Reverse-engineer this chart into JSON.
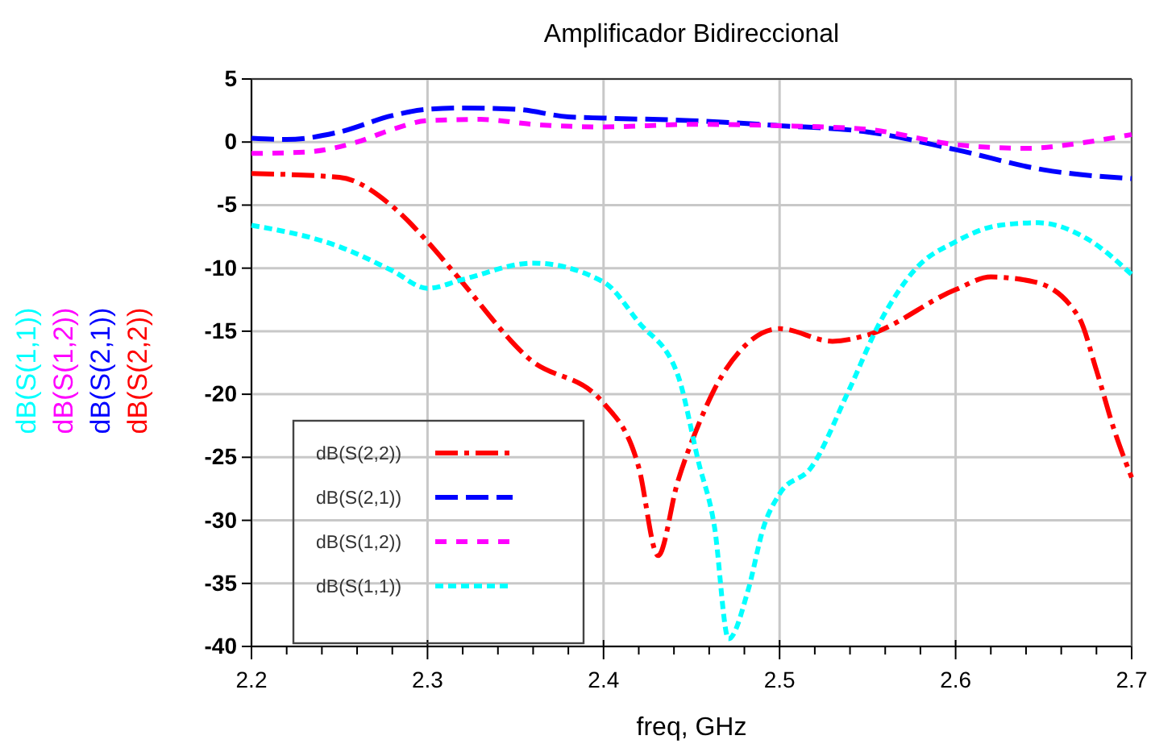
{
  "chart_data": {
    "type": "line",
    "title": "Amplificador Bidireccional",
    "xlabel": "freq, GHz",
    "xlim": [
      2.2,
      2.7
    ],
    "ylim": [
      -40,
      5
    ],
    "xticks": [
      2.2,
      {
        "value": 2.22,
        "label": null
      },
      {
        "value": 2.24,
        "label": null
      },
      {
        "value": 2.26,
        "label": null
      },
      {
        "value": 2.28,
        "label": null
      },
      2.3,
      {
        "value": 2.32,
        "label": null
      },
      {
        "value": 2.34,
        "label": null
      },
      {
        "value": 2.36,
        "label": null
      },
      {
        "value": 2.38,
        "label": null
      },
      2.4,
      {
        "value": 2.42,
        "label": null
      },
      {
        "value": 2.44,
        "label": null
      },
      {
        "value": 2.46,
        "label": null
      },
      {
        "value": 2.48,
        "label": null
      },
      2.5,
      {
        "value": 2.52,
        "label": null
      },
      {
        "value": 2.54,
        "label": null
      },
      {
        "value": 2.56,
        "label": null
      },
      {
        "value": 2.58,
        "label": null
      },
      2.6,
      {
        "value": 2.62,
        "label": null
      },
      {
        "value": 2.64,
        "label": null
      },
      {
        "value": 2.66,
        "label": null
      },
      {
        "value": 2.68,
        "label": null
      },
      2.7
    ],
    "yticks": [
      -40,
      -35,
      -30,
      -25,
      -20,
      -15,
      -10,
      -5,
      0,
      5
    ],
    "grid": true,
    "legend": "bottom left",
    "marker": "none",
    "series": [
      {
        "name": "dB(S(2,2))",
        "color": "#ff0000",
        "line_style": "dashed",
        "x": [
          2.2,
          2.25,
          2.28,
          2.3,
          2.316,
          2.357,
          2.4,
          2.42,
          2.431,
          2.442,
          2.454,
          2.463,
          2.48,
          2.5,
          2.53,
          2.55,
          2.6,
          2.62,
          2.645,
          2.67,
          2.68,
          2.69,
          2.7
        ],
        "values": [
          -2.5,
          -2.8,
          -5.1,
          -7.9,
          -10.5,
          -17.1,
          -20.7,
          -25.8,
          -32.8,
          -27,
          -22.4,
          -19.6,
          -16.2,
          -14.8,
          -15.8,
          -15.3,
          -11.7,
          -10.7,
          -11.1,
          -13.9,
          -18.1,
          -22.8,
          -26.6
        ]
      },
      {
        "name": "dB(S(2,1))",
        "color": "#0000ff",
        "line_style": "dashed",
        "x": [
          2.2,
          2.22,
          2.25,
          2.28,
          2.3,
          2.32,
          2.35,
          2.38,
          2.4,
          2.45,
          2.5,
          2.55,
          2.6,
          2.65,
          2.7
        ],
        "values": [
          0.3,
          0.2,
          0.8,
          2.1,
          2.6,
          2.7,
          2.6,
          2.0,
          1.9,
          1.7,
          1.3,
          0.8,
          -0.6,
          -2.2,
          -2.9
        ]
      },
      {
        "name": "dB(S(1,2))",
        "color": "#ff00ff",
        "line_style": "dashed",
        "x": [
          2.2,
          2.23,
          2.26,
          2.28,
          2.3,
          2.33,
          2.36,
          2.4,
          2.45,
          2.5,
          2.55,
          2.6,
          2.64,
          2.67,
          2.7
        ],
        "values": [
          -0.9,
          -0.8,
          0,
          1.0,
          1.7,
          1.8,
          1.4,
          1.2,
          1.4,
          1.3,
          1.0,
          -0.2,
          -0.5,
          -0.1,
          0.6
        ]
      },
      {
        "name": "dB(S(1,1))",
        "color": "#00ffff",
        "line_style": "dotted",
        "x": [
          2.2,
          2.25,
          2.28,
          2.3,
          2.32,
          2.36,
          2.4,
          2.42,
          2.442,
          2.454,
          2.463,
          2.471,
          2.482,
          2.491,
          2.5,
          2.518,
          2.539,
          2.557,
          2.577,
          2.6,
          2.625,
          2.647,
          2.675,
          2.7
        ],
        "values": [
          -6.6,
          -8.3,
          -10.2,
          -11.6,
          -10.9,
          -9.6,
          -11.1,
          -14.3,
          -18.4,
          -25.4,
          -30.5,
          -39.4,
          -35.6,
          -30.5,
          -27.9,
          -25.8,
          -19.8,
          -14.3,
          -10.1,
          -7.9,
          -6.6,
          -6.4,
          -7.7,
          -10.5
        ]
      }
    ]
  }
}
